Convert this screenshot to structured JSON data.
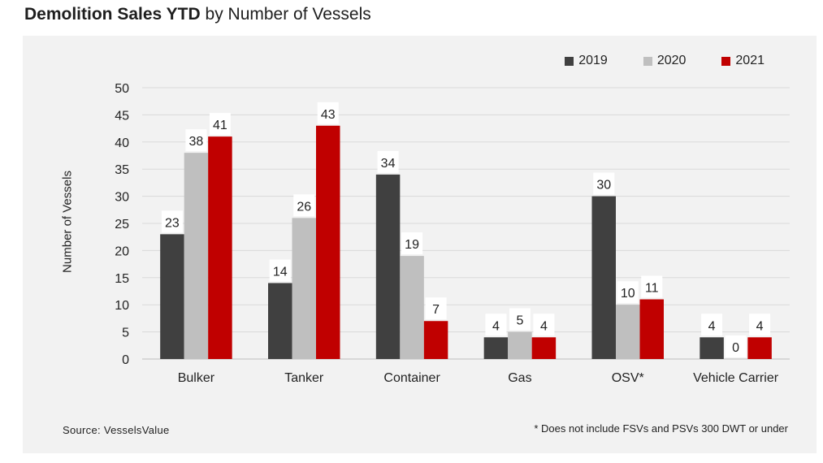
{
  "title": {
    "bold": "Demolition Sales YTD",
    "rest": "by Number of Vessels"
  },
  "chart_data": {
    "type": "bar",
    "categories": [
      "Bulker",
      "Tanker",
      "Container",
      "Gas",
      "OSV*",
      "Vehicle Carrier"
    ],
    "series": [
      {
        "name": "2019",
        "color": "#404040",
        "values": [
          23,
          14,
          34,
          4,
          30,
          4
        ]
      },
      {
        "name": "2020",
        "color": "#bfbfbf",
        "values": [
          38,
          26,
          19,
          5,
          10,
          0
        ]
      },
      {
        "name": "2021",
        "color": "#c00000",
        "values": [
          41,
          43,
          7,
          4,
          11,
          4
        ]
      }
    ],
    "ylabel": "Number of Vessels",
    "ylim": [
      0,
      50
    ],
    "yticks": [
      0,
      5,
      10,
      15,
      20,
      25,
      30,
      35,
      40,
      45,
      50
    ],
    "grid": true,
    "legend": "top-right",
    "data_labels": true
  },
  "source": "Source: VesselsValue",
  "footnote": "* Does not include FSVs and PSVs 300 DWT or under"
}
